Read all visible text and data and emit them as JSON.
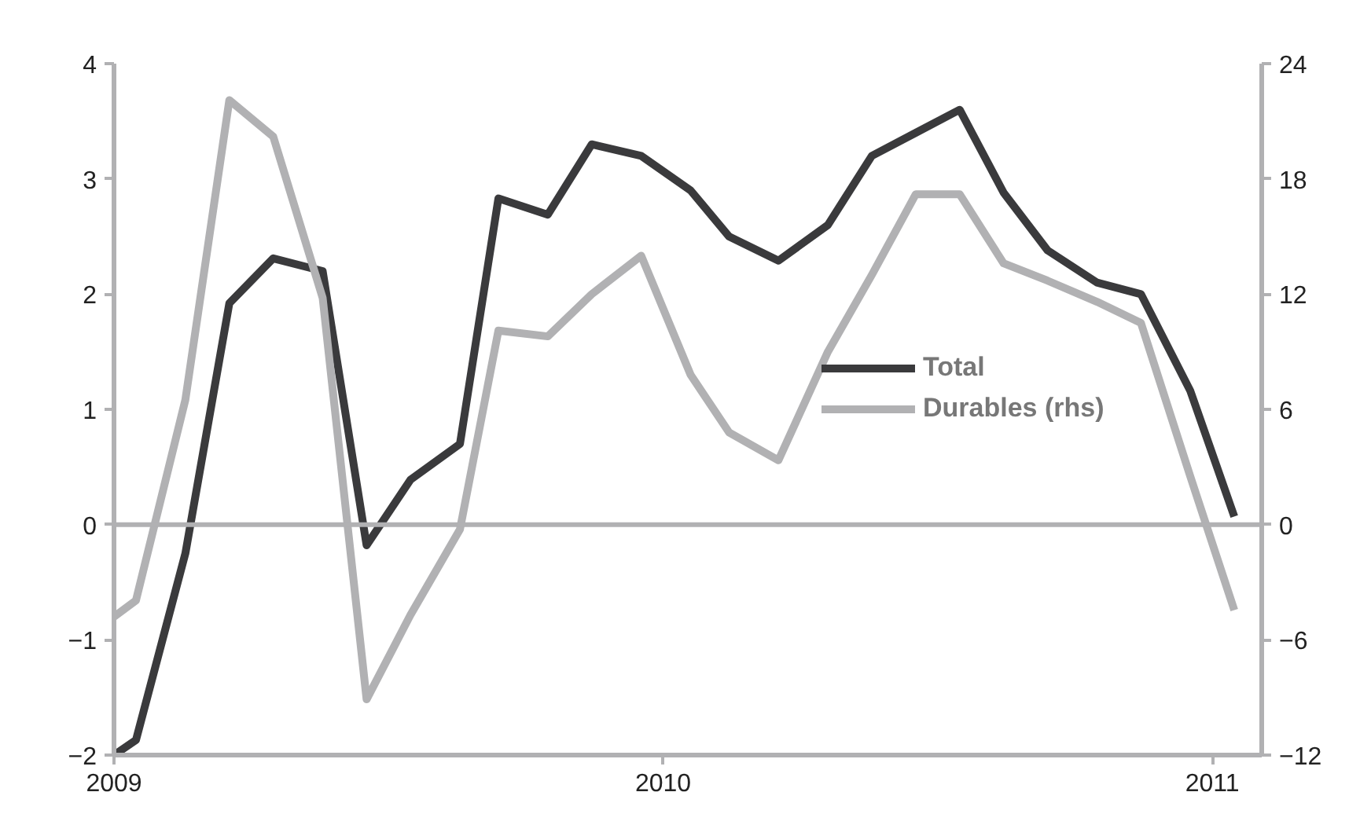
{
  "chart_data": {
    "type": "line",
    "x": [
      2009.0,
      2009.04,
      2009.13,
      2009.21,
      2009.29,
      2009.38,
      2009.46,
      2009.54,
      2009.63,
      2009.7,
      2009.79,
      2009.87,
      2009.96,
      2010.05,
      2010.12,
      2010.21,
      2010.3,
      2010.38,
      2010.46,
      2010.54,
      2010.62,
      2010.7,
      2010.79,
      2010.87,
      2010.96,
      2011.04
    ],
    "series": [
      {
        "name": "Total",
        "color": "#3a3a3c",
        "values": [
          -2.0,
          -1.87,
          -0.25,
          1.92,
          2.31,
          2.2,
          -0.18,
          0.39,
          0.7,
          2.83,
          2.69,
          3.3,
          3.2,
          2.9,
          2.5,
          2.29,
          2.6,
          3.2,
          3.4,
          3.6,
          2.88,
          2.38,
          2.1,
          2.0,
          1.16,
          0.07
        ]
      },
      {
        "name": "Durables (rhs)",
        "color": "#b1b1b3",
        "axis": "y2",
        "values": [
          -4.8,
          -3.95,
          6.5,
          22.1,
          20.2,
          11.8,
          -9.1,
          -4.7,
          -0.25,
          10.1,
          9.8,
          12.0,
          14.0,
          7.8,
          4.8,
          3.35,
          9.0,
          13.0,
          17.2,
          17.2,
          13.6,
          12.7,
          11.6,
          10.5,
          2.5,
          -4.45
        ]
      }
    ],
    "xlim": [
      2009.0,
      2011.09
    ],
    "xticks": [
      2009,
      2010,
      2011
    ],
    "ylim": [
      -2,
      4
    ],
    "yticks": [
      -2,
      -1,
      0,
      1,
      2,
      3,
      4
    ],
    "y2lim": [
      -12,
      24
    ],
    "y2ticks": [
      -12,
      -6,
      0,
      6,
      12,
      18,
      24
    ],
    "ref_lines": [
      {
        "axis": "y",
        "value": 0,
        "color": "#b1b1b3"
      }
    ],
    "legend": "right",
    "grid": false,
    "line_style": "solid"
  }
}
